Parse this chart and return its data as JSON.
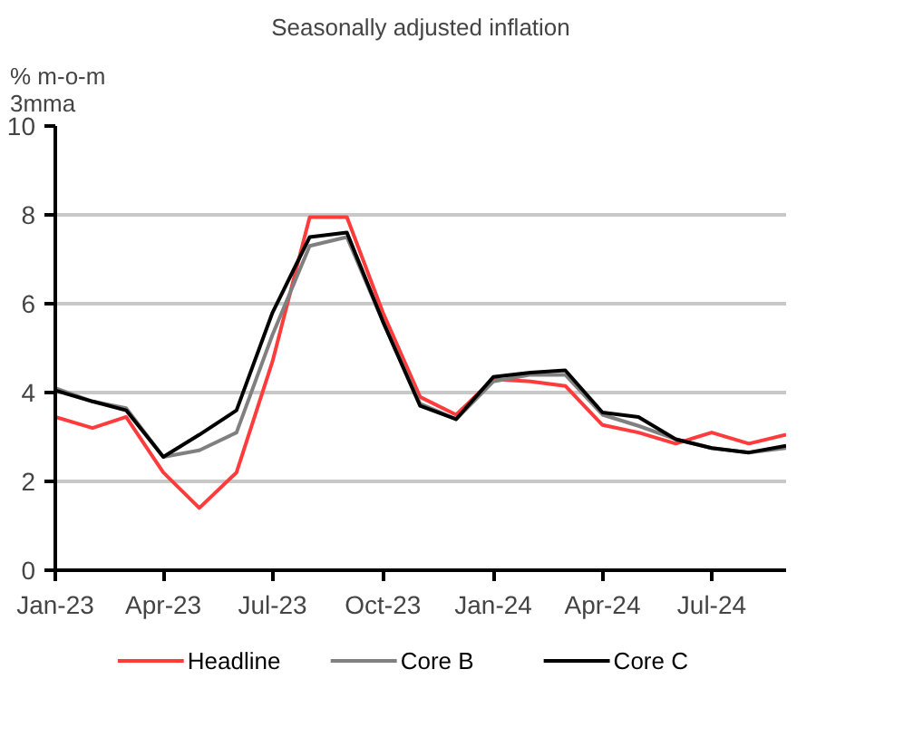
{
  "chart_data": {
    "type": "line",
    "title": "Seasonally adjusted inflation",
    "ylabel": "% m-o-m\n3mma",
    "x": [
      "2023-01",
      "2023-02",
      "2023-03",
      "2023-04",
      "2023-05",
      "2023-06",
      "2023-07",
      "2023-08",
      "2023-09",
      "2023-10",
      "2023-11",
      "2023-12",
      "2024-01",
      "2024-02",
      "2024-03",
      "2024-04",
      "2024-05",
      "2024-06",
      "2024-07",
      "2024-08",
      "2024-09"
    ],
    "series": [
      {
        "name": "Headline",
        "color": "#ff3b3b",
        "values": [
          3.45,
          3.2,
          3.45,
          2.2,
          1.4,
          2.2,
          4.7,
          7.95,
          7.95,
          5.8,
          3.9,
          3.5,
          4.3,
          4.25,
          4.15,
          3.27,
          3.1,
          2.85,
          3.1,
          2.85,
          3.05
        ]
      },
      {
        "name": "Core B",
        "color": "#808080",
        "values": [
          4.1,
          3.8,
          3.65,
          2.55,
          2.7,
          3.1,
          5.3,
          7.3,
          7.5,
          5.6,
          3.75,
          3.4,
          4.25,
          4.4,
          4.4,
          3.5,
          3.25,
          2.95,
          2.75,
          2.65,
          2.75
        ]
      },
      {
        "name": "Core C",
        "color": "#000000",
        "values": [
          4.05,
          3.8,
          3.6,
          2.55,
          3.05,
          3.6,
          5.8,
          7.5,
          7.6,
          5.6,
          3.7,
          3.4,
          4.35,
          4.45,
          4.5,
          3.55,
          3.45,
          2.95,
          2.75,
          2.65,
          2.8
        ]
      }
    ],
    "xlim": [
      "2023-01",
      "2024-09"
    ],
    "xticks": [
      {
        "value": "2023-01",
        "label": "Jan-23"
      },
      {
        "value": "2023-04",
        "label": "Apr-23"
      },
      {
        "value": "2023-07",
        "label": "Jul-23"
      },
      {
        "value": "2023-10",
        "label": "Oct-23"
      },
      {
        "value": "2024-01",
        "label": "Jan-24"
      },
      {
        "value": "2024-04",
        "label": "Apr-24"
      },
      {
        "value": "2024-07",
        "label": "Jul-24"
      }
    ],
    "ylim": [
      0,
      10
    ],
    "yticks": [
      0,
      2,
      4,
      6,
      8,
      10
    ],
    "grid": "y",
    "legend": "bottom",
    "line_style": "solid"
  }
}
